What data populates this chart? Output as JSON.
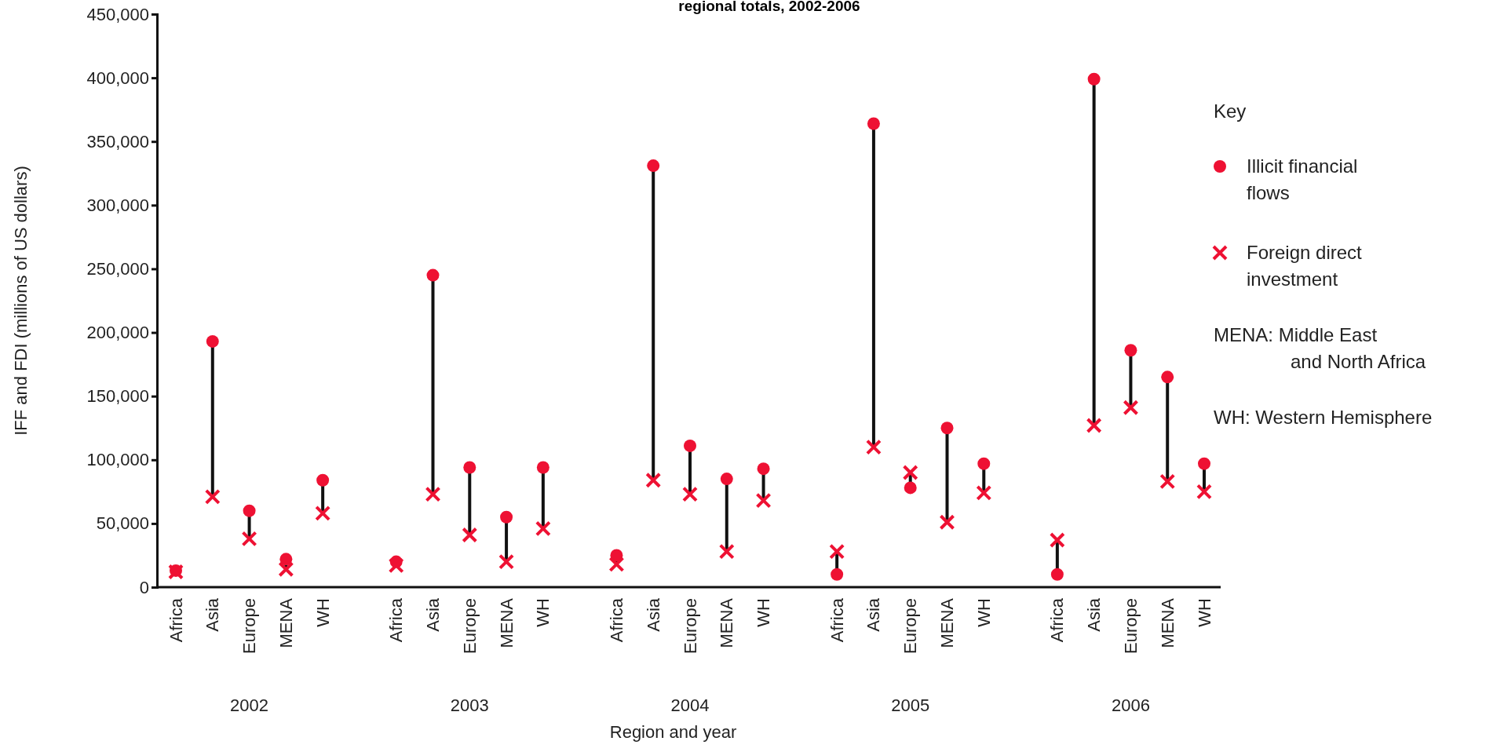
{
  "chart_data": {
    "type": "scatter",
    "title": "regional totals, 2002-2006",
    "xlabel": "Region and year",
    "ylabel": "IFF and FDI (millions of US dollars)",
    "legend_title": "Key",
    "legend": "right",
    "categories": [
      "Africa",
      "Asia",
      "Europe",
      "MENA",
      "WH",
      null,
      "Africa",
      "Asia",
      "Europe",
      "MENA",
      "WH",
      null,
      "Africa",
      "Asia",
      "Europe",
      "MENA",
      "WH",
      null,
      "Africa",
      "Asia",
      "Europe",
      "MENA",
      "WH",
      null,
      "Africa",
      "Asia",
      "Europe",
      "MENA",
      "WH"
    ],
    "series": [
      {
        "name": "Illicit financial flows",
        "color": "#ee1133",
        "marker": "circle",
        "values": [
          13000,
          193000,
          60000,
          22000,
          84000,
          null,
          20000,
          245000,
          94000,
          55000,
          94000,
          null,
          25000,
          331000,
          111000,
          85000,
          93000,
          null,
          10000,
          364000,
          78000,
          125000,
          97000,
          null,
          10000,
          399000,
          186000,
          165000,
          97000
        ]
      },
      {
        "name": "Foreign direct investment",
        "color": "#ee1133",
        "marker": "cross",
        "values": [
          12000,
          71000,
          38000,
          14000,
          58000,
          null,
          17000,
          73000,
          41000,
          20000,
          46000,
          null,
          18000,
          84000,
          73000,
          28000,
          68000,
          null,
          28000,
          110000,
          90000,
          51000,
          74000,
          null,
          37000,
          127000,
          141000,
          83000,
          75000
        ]
      }
    ],
    "ylim": [
      0,
      450000
    ],
    "yticks": [
      {
        "value": 0,
        "label": "0"
      },
      {
        "value": 50000,
        "label": "50,000"
      },
      {
        "value": 100000,
        "label": "100,000"
      },
      {
        "value": 150000,
        "label": "150,000"
      },
      {
        "value": 200000,
        "label": "200,000"
      },
      {
        "value": 250000,
        "label": "250,000"
      },
      {
        "value": 300000,
        "label": "300,000"
      },
      {
        "value": 350000,
        "label": "350,000"
      },
      {
        "value": 400000,
        "label": "400,000"
      },
      {
        "value": 450000,
        "label": "450,000"
      }
    ],
    "grid": false,
    "annotations": [
      "2002",
      "2003",
      "2004",
      "2005",
      "2006",
      "MENA: Middle East\nand North Africa",
      "WH: Western Hemisphere"
    ]
  }
}
